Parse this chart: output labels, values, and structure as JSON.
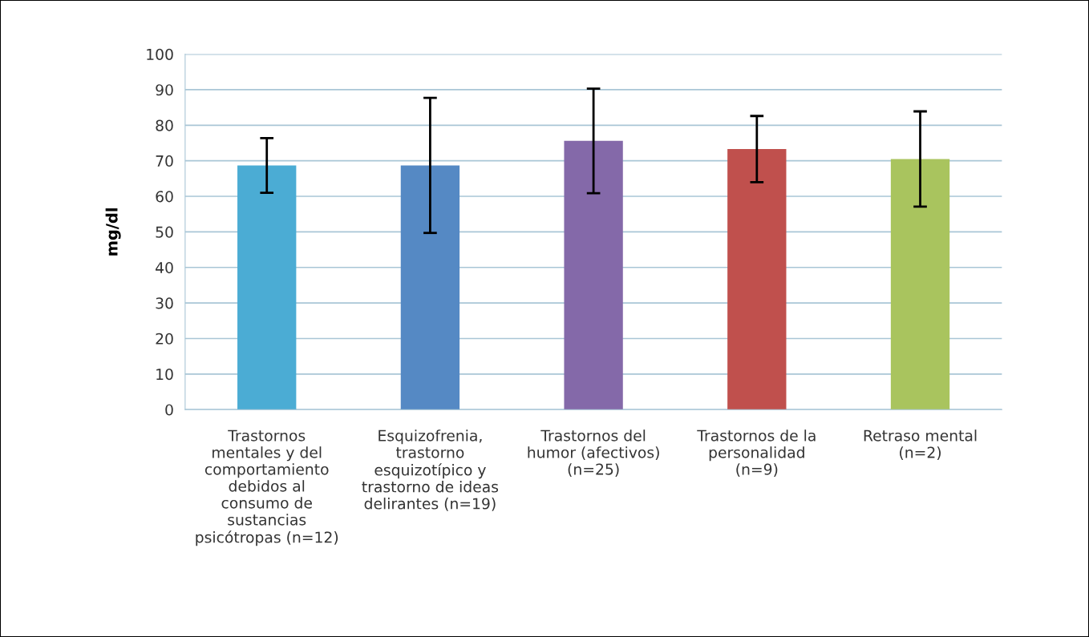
{
  "chart_data": {
    "type": "bar",
    "ylabel": "mg/dl",
    "categories": [
      "Trastornos\nmentales y del\ncomportamiento\ndebidos al\nconsumo de\nsustancias\npsicótropas (n=12)",
      "Esquizofrenia,\ntrastorno\nesquizotípico y\ntrastorno de ideas\ndelirantes (n=19)",
      "Trastornos del\nhumor (afectivos)\n(n=25)",
      "Trastornos de la\npersonalidad\n(n=9)",
      "Retraso mental\n(n=2)"
    ],
    "values": [
      68.7,
      68.7,
      75.6,
      73.3,
      70.5
    ],
    "errors": [
      7.7,
      19,
      14.7,
      9.3,
      13.4
    ],
    "colors": [
      "#4bacd4",
      "#5589c4",
      "#8469a9",
      "#c0504d",
      "#a9c45e"
    ],
    "ylim": [
      0,
      100
    ],
    "yticks": [
      0,
      10,
      20,
      30,
      40,
      50,
      60,
      70,
      80,
      90,
      100
    ],
    "grid": "y"
  }
}
